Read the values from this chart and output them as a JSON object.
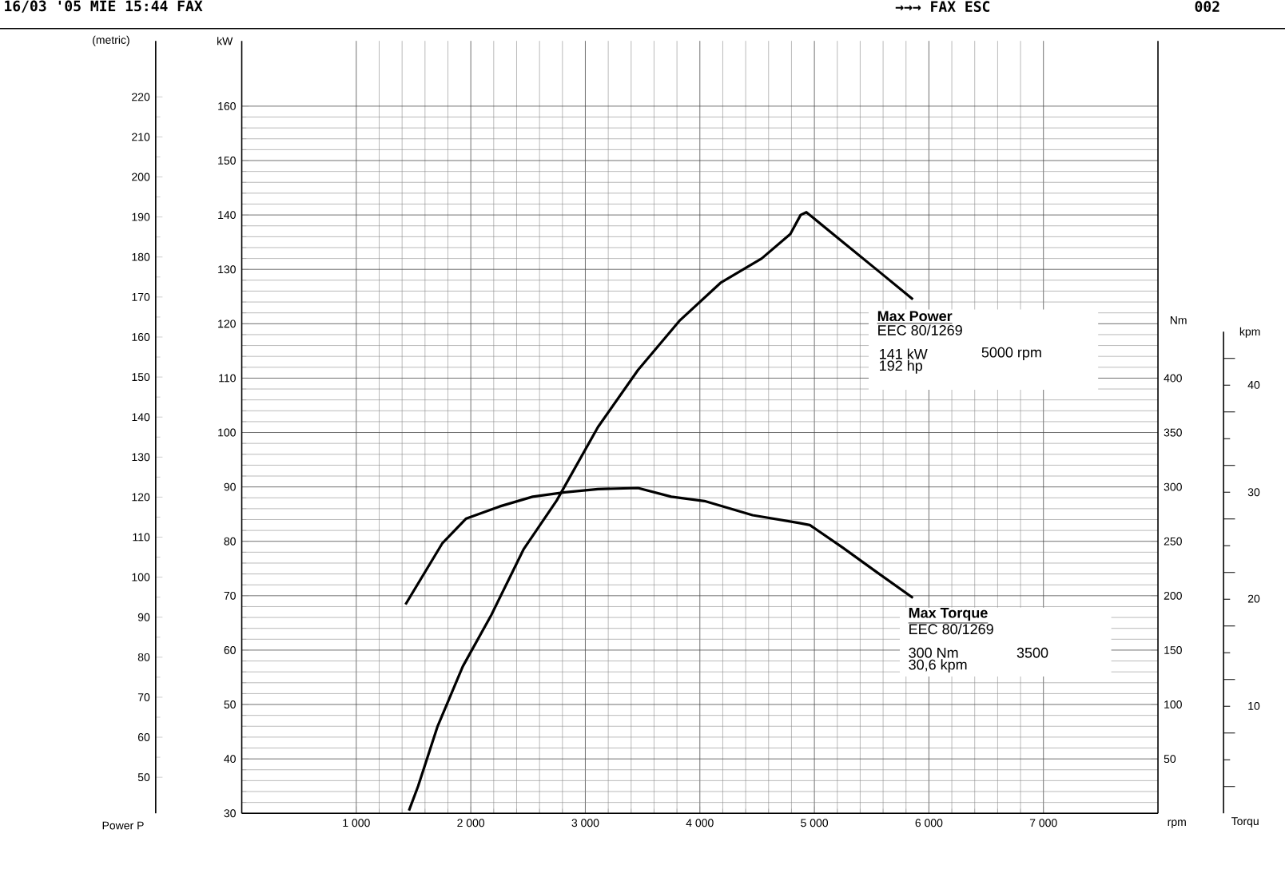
{
  "chart_data": {
    "type": "line",
    "xlabel": "rpm",
    "ylabel": "kW",
    "y2label": "Nm",
    "y3label": "(metric)",
    "xlim": [
      0,
      8000
    ],
    "ylim": [
      30,
      172
    ],
    "y2lim": [
      0,
      710
    ],
    "y3lim": [
      41,
      234
    ],
    "xticks": [
      {
        "value": 1000,
        "label": "1 000"
      },
      {
        "value": 2000,
        "label": "2 000"
      },
      {
        "value": 3000,
        "label": "3 000"
      },
      {
        "value": 4000,
        "label": "4 000"
      },
      {
        "value": 5000,
        "label": "5 000"
      },
      {
        "value": 6000,
        "label": "6 000"
      },
      {
        "value": 7000,
        "label": "7 000"
      }
    ],
    "yticks": [
      30,
      40,
      50,
      60,
      70,
      80,
      90,
      100,
      110,
      120,
      130,
      140,
      150,
      160
    ],
    "y2ticks": [
      50,
      100,
      150,
      200,
      250,
      300,
      350,
      400
    ],
    "y3ticks": [
      50,
      60,
      70,
      80,
      90,
      100,
      110,
      120,
      130,
      140,
      150,
      160,
      170,
      180,
      190,
      200,
      210,
      220
    ],
    "grid": true,
    "line_style": "solid",
    "marker": "none",
    "series": [
      {
        "color": "#000000",
        "x": [
          1460,
          1540,
          1710,
          1930,
          2180,
          2460,
          2750,
          3110,
          3460,
          3820,
          4180,
          4540,
          4790,
          4880,
          4930,
          5250,
          5570,
          5860
        ],
        "values": [
          30.5,
          35,
          46,
          57,
          66.5,
          78.5,
          87.5,
          101,
          111.5,
          120.5,
          127.5,
          132,
          136.5,
          140,
          140.5,
          135,
          129.5,
          124.5
        ]
      },
      {
        "color": "#000000",
        "axis": "y2",
        "x": [
          1430,
          1750,
          1960,
          2250,
          2540,
          2820,
          3110,
          3460,
          3750,
          4040,
          4460,
          4860,
          4960,
          5250,
          5540,
          5860
        ],
        "values": [
          192,
          248,
          271,
          282,
          291,
          295,
          298,
          299,
          291,
          287,
          274,
          267,
          265,
          244,
          222,
          198
        ]
      }
    ],
    "annotations": [
      "Max Power",
      "EEC 80/1269",
      "141 kW",
      "192 hp",
      "5000 rpm",
      "Max Torque",
      "EEC 80/1269",
      "300 Nm",
      "30,6 kpm",
      "3500",
      "Power P",
      "Torqu",
      "16/03 '05 MIE 15:44 FAX",
      "→→→ FAX ESC",
      "002",
      "kpm",
      "10",
      "20",
      "30",
      "40"
    ]
  }
}
